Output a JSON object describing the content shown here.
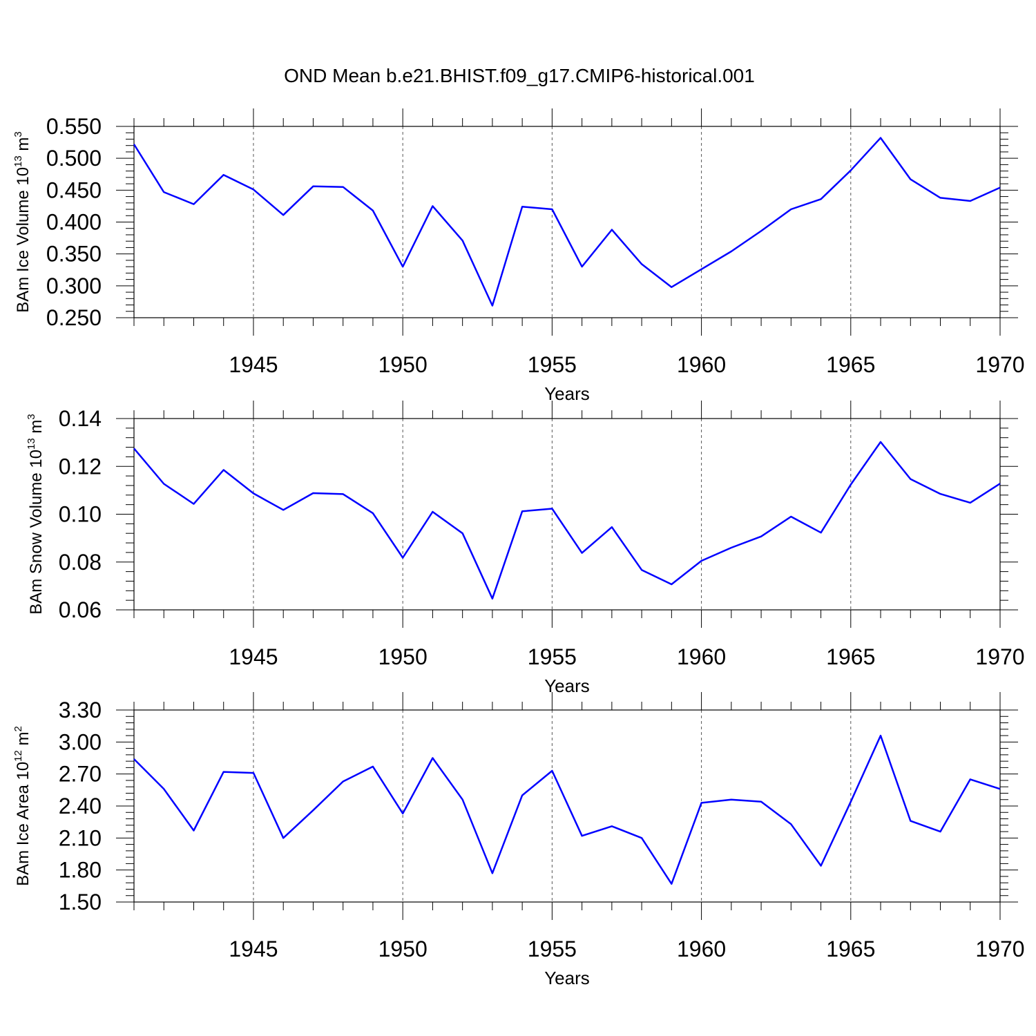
{
  "title": "OND Mean b.e21.BHIST.f09_g17.CMIP6-historical.001",
  "colors": {
    "line": "#0000ff",
    "axis": "#000000",
    "grid": "#555555"
  },
  "chart_data": [
    {
      "type": "line",
      "ylabel": {
        "text": "BAm Ice Volume 10",
        "sup": "13",
        "unit": " m",
        "unit_sup": "3"
      },
      "xlabel": "Years",
      "xlim": [
        1941,
        1970
      ],
      "ylim": [
        0.25,
        0.55
      ],
      "yticks": [
        0.25,
        0.3,
        0.35,
        0.4,
        0.45,
        0.5,
        0.55
      ],
      "ytick_labels": [
        "0.250",
        "0.300",
        "0.350",
        "0.400",
        "0.450",
        "0.500",
        "0.550"
      ],
      "xticks": [
        1945,
        1950,
        1955,
        1960,
        1965,
        1970
      ],
      "xtick_labels": [
        "1945",
        "1950",
        "1955",
        "1960",
        "1965",
        "1970"
      ],
      "grid": "vertical dashed at major x ticks",
      "x": [
        1941,
        1942,
        1943,
        1944,
        1945,
        1946,
        1947,
        1948,
        1949,
        1950,
        1951,
        1952,
        1953,
        1954,
        1955,
        1956,
        1957,
        1958,
        1959,
        1960,
        1961,
        1962,
        1963,
        1964,
        1965,
        1966,
        1967,
        1968,
        1969,
        1970
      ],
      "series": [
        {
          "values": [
            0.522,
            0.447,
            0.428,
            0.474,
            0.451,
            0.411,
            0.456,
            0.455,
            0.418,
            0.33,
            0.425,
            0.371,
            0.269,
            0.424,
            0.42,
            0.33,
            0.388,
            0.334,
            0.298,
            0.326,
            0.354,
            0.386,
            0.42,
            0.436,
            0.481,
            0.532,
            0.467,
            0.438,
            0.433,
            0.454
          ]
        }
      ]
    },
    {
      "type": "line",
      "ylabel": {
        "text": "BAm Snow Volume 10",
        "sup": "13",
        "unit": " m",
        "unit_sup": "3"
      },
      "xlabel": "Years",
      "xlim": [
        1941,
        1970
      ],
      "ylim": [
        0.06,
        0.14
      ],
      "yticks": [
        0.06,
        0.08,
        0.1,
        0.12,
        0.14
      ],
      "ytick_labels": [
        "0.06",
        "0.08",
        "0.10",
        "0.12",
        "0.14"
      ],
      "xticks": [
        1945,
        1950,
        1955,
        1960,
        1965,
        1970
      ],
      "xtick_labels": [
        "1945",
        "1950",
        "1955",
        "1960",
        "1965",
        "1970"
      ],
      "grid": "vertical dashed at major x ticks",
      "x": [
        1941,
        1942,
        1943,
        1944,
        1945,
        1946,
        1947,
        1948,
        1949,
        1950,
        1951,
        1952,
        1953,
        1954,
        1955,
        1956,
        1957,
        1958,
        1959,
        1960,
        1961,
        1962,
        1963,
        1964,
        1965,
        1966,
        1967,
        1968,
        1969,
        1970
      ],
      "series": [
        {
          "values": [
            0.1275,
            0.1127,
            0.1043,
            0.1185,
            0.1087,
            0.1018,
            0.1088,
            0.1084,
            0.1004,
            0.0818,
            0.101,
            0.092,
            0.0647,
            0.1012,
            0.1023,
            0.0838,
            0.0946,
            0.0767,
            0.0707,
            0.0805,
            0.086,
            0.0907,
            0.099,
            0.0923,
            0.1124,
            0.1302,
            0.1147,
            0.1085,
            0.1048,
            0.1128
          ]
        }
      ]
    },
    {
      "type": "line",
      "ylabel": {
        "text": "BAm Ice Area 10",
        "sup": "12",
        "unit": " m",
        "unit_sup": "2"
      },
      "xlabel": "Years",
      "xlim": [
        1941,
        1970
      ],
      "ylim": [
        1.5,
        3.3
      ],
      "yticks": [
        1.5,
        1.8,
        2.1,
        2.4,
        2.7,
        3.0,
        3.3
      ],
      "ytick_labels": [
        "1.50",
        "1.80",
        "2.10",
        "2.40",
        "2.70",
        "3.00",
        "3.30"
      ],
      "xticks": [
        1945,
        1950,
        1955,
        1960,
        1965,
        1970
      ],
      "xtick_labels": [
        "1945",
        "1950",
        "1955",
        "1960",
        "1965",
        "1970"
      ],
      "grid": "vertical dashed at major x ticks",
      "x": [
        1941,
        1942,
        1943,
        1944,
        1945,
        1946,
        1947,
        1948,
        1949,
        1950,
        1951,
        1952,
        1953,
        1954,
        1955,
        1956,
        1957,
        1958,
        1959,
        1960,
        1961,
        1962,
        1963,
        1964,
        1965,
        1966,
        1967,
        1968,
        1969,
        1970
      ],
      "series": [
        {
          "values": [
            2.84,
            2.56,
            2.17,
            2.72,
            2.71,
            2.1,
            2.36,
            2.63,
            2.77,
            2.33,
            2.85,
            2.46,
            1.77,
            2.5,
            2.73,
            2.12,
            2.21,
            2.1,
            1.67,
            2.43,
            2.46,
            2.44,
            2.23,
            1.84,
            2.44,
            3.06,
            2.26,
            2.16,
            2.65,
            2.56
          ]
        }
      ]
    }
  ]
}
